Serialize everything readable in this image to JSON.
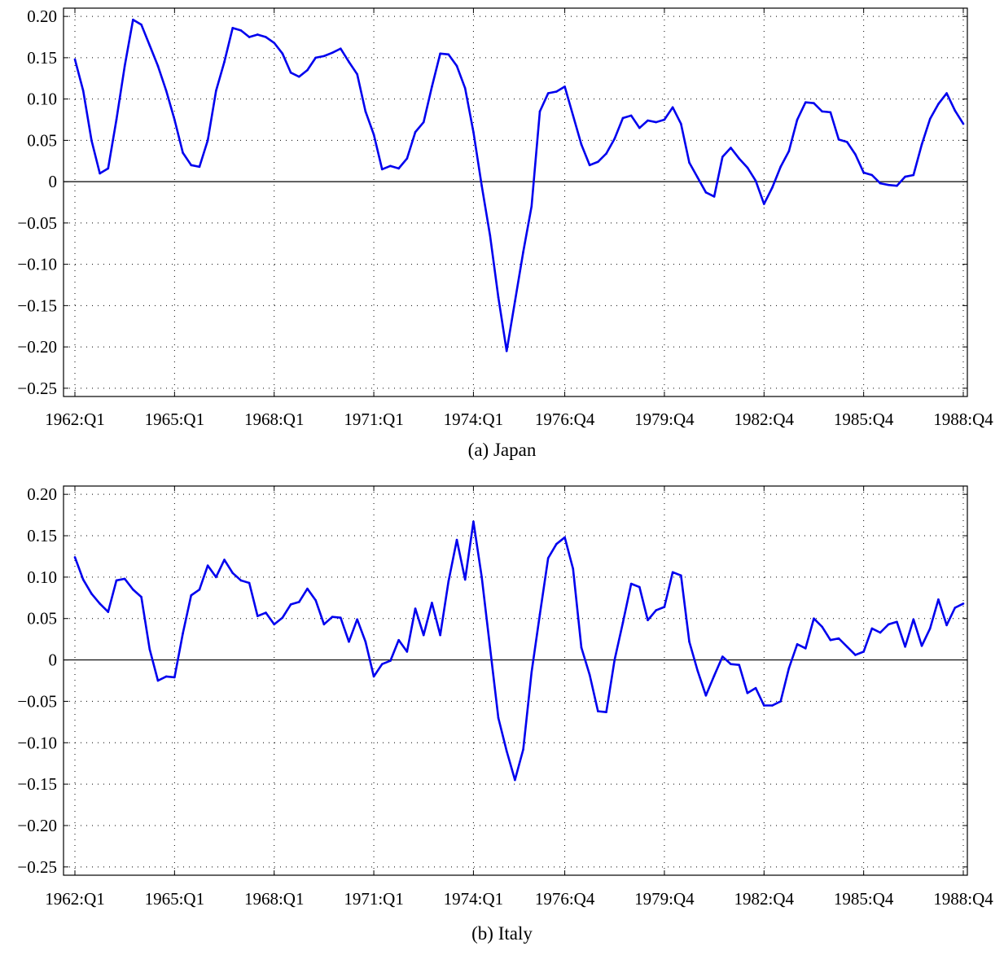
{
  "chart_data": [
    {
      "type": "line",
      "caption": "(a) Japan",
      "ylim": [
        -0.26,
        0.21
      ],
      "yticks": [
        0.2,
        0.15,
        0.1,
        0.05,
        0,
        -0.05,
        -0.1,
        -0.15,
        -0.2,
        -0.25
      ],
      "ytick_labels": [
        "0.20",
        "0.15",
        "0.10",
        "0.05",
        "0",
        "−0.05",
        "−0.10",
        "−0.15",
        "−0.20",
        "−0.25"
      ],
      "xtick_labels": [
        "1962:Q1",
        "1965:Q1",
        "1968:Q1",
        "1971:Q1",
        "1974:Q1",
        "1976:Q4",
        "1979:Q4",
        "1982:Q4",
        "1985:Q4",
        "1988:Q4"
      ],
      "xtick_index": [
        0,
        12,
        24,
        36,
        48,
        59,
        71,
        83,
        95,
        107
      ],
      "grid": true,
      "zero_line": true,
      "color": "#0000ee",
      "values": [
        0.148,
        0.11,
        0.05,
        0.01,
        0.016,
        0.075,
        0.14,
        0.196,
        0.19,
        0.165,
        0.14,
        0.11,
        0.075,
        0.035,
        0.02,
        0.018,
        0.05,
        0.11,
        0.145,
        0.186,
        0.183,
        0.175,
        0.178,
        0.175,
        0.168,
        0.155,
        0.132,
        0.127,
        0.135,
        0.15,
        0.152,
        0.156,
        0.161,
        0.145,
        0.13,
        0.085,
        0.057,
        0.015,
        0.019,
        0.016,
        0.028,
        0.06,
        0.072,
        0.115,
        0.155,
        0.154,
        0.14,
        0.113,
        0.06,
        -0.005,
        -0.065,
        -0.14,
        -0.205,
        -0.145,
        -0.085,
        -0.03,
        0.085,
        0.107,
        0.109,
        0.115,
        0.08,
        0.045,
        0.02,
        0.024,
        0.034,
        0.052,
        0.077,
        0.08,
        0.065,
        0.074,
        0.072,
        0.075,
        0.09,
        0.07,
        0.023,
        0.005,
        -0.013,
        -0.018,
        0.03,
        0.041,
        0.028,
        0.017,
        0.001,
        -0.027,
        -0.007,
        0.018,
        0.037,
        0.075,
        0.096,
        0.095,
        0.085,
        0.084,
        0.051,
        0.048,
        0.033,
        0.011,
        0.008,
        -0.002,
        -0.004,
        -0.005,
        0.006,
        0.008,
        0.045,
        0.076,
        0.094,
        0.107,
        0.086,
        0.07
      ]
    },
    {
      "type": "line",
      "caption": "(b) Italy",
      "ylim": [
        -0.26,
        0.21
      ],
      "yticks": [
        0.2,
        0.15,
        0.1,
        0.05,
        0,
        -0.05,
        -0.1,
        -0.15,
        -0.2,
        -0.25
      ],
      "ytick_labels": [
        "0.20",
        "0.15",
        "0.10",
        "0.05",
        "0",
        "−0.05",
        "−0.10",
        "−0.15",
        "−0.20",
        "−0.25"
      ],
      "xtick_labels": [
        "1962:Q1",
        "1965:Q1",
        "1968:Q1",
        "1971:Q1",
        "1974:Q1",
        "1976:Q4",
        "1979:Q4",
        "1982:Q4",
        "1985:Q4",
        "1988:Q4"
      ],
      "xtick_index": [
        0,
        12,
        24,
        36,
        48,
        59,
        71,
        83,
        95,
        107
      ],
      "grid": true,
      "zero_line": true,
      "color": "#0000ee",
      "values": [
        0.124,
        0.097,
        0.08,
        0.068,
        0.058,
        0.096,
        0.098,
        0.085,
        0.076,
        0.013,
        -0.025,
        -0.02,
        -0.021,
        0.032,
        0.078,
        0.085,
        0.114,
        0.1,
        0.121,
        0.105,
        0.096,
        0.093,
        0.053,
        0.057,
        0.043,
        0.051,
        0.067,
        0.07,
        0.086,
        0.072,
        0.043,
        0.052,
        0.051,
        0.022,
        0.049,
        0.022,
        -0.02,
        -0.005,
        -0.001,
        0.024,
        0.01,
        0.062,
        0.03,
        0.069,
        0.03,
        0.095,
        0.145,
        0.097,
        0.167,
        0.1,
        0.015,
        -0.07,
        -0.11,
        -0.145,
        -0.108,
        -0.015,
        0.055,
        0.123,
        0.14,
        0.148,
        0.11,
        0.015,
        -0.018,
        -0.062,
        -0.063,
        0.0,
        0.045,
        0.092,
        0.088,
        0.048,
        0.06,
        0.064,
        0.106,
        0.102,
        0.022,
        -0.013,
        -0.043,
        -0.019,
        0.004,
        -0.005,
        -0.006,
        -0.04,
        -0.034,
        -0.055,
        -0.055,
        -0.05,
        -0.01,
        0.019,
        0.014,
        0.05,
        0.04,
        0.024,
        0.026,
        0.016,
        0.006,
        0.01,
        0.038,
        0.033,
        0.043,
        0.046,
        0.016,
        0.049,
        0.017,
        0.038,
        0.073,
        0.042,
        0.063,
        0.068
      ]
    }
  ]
}
